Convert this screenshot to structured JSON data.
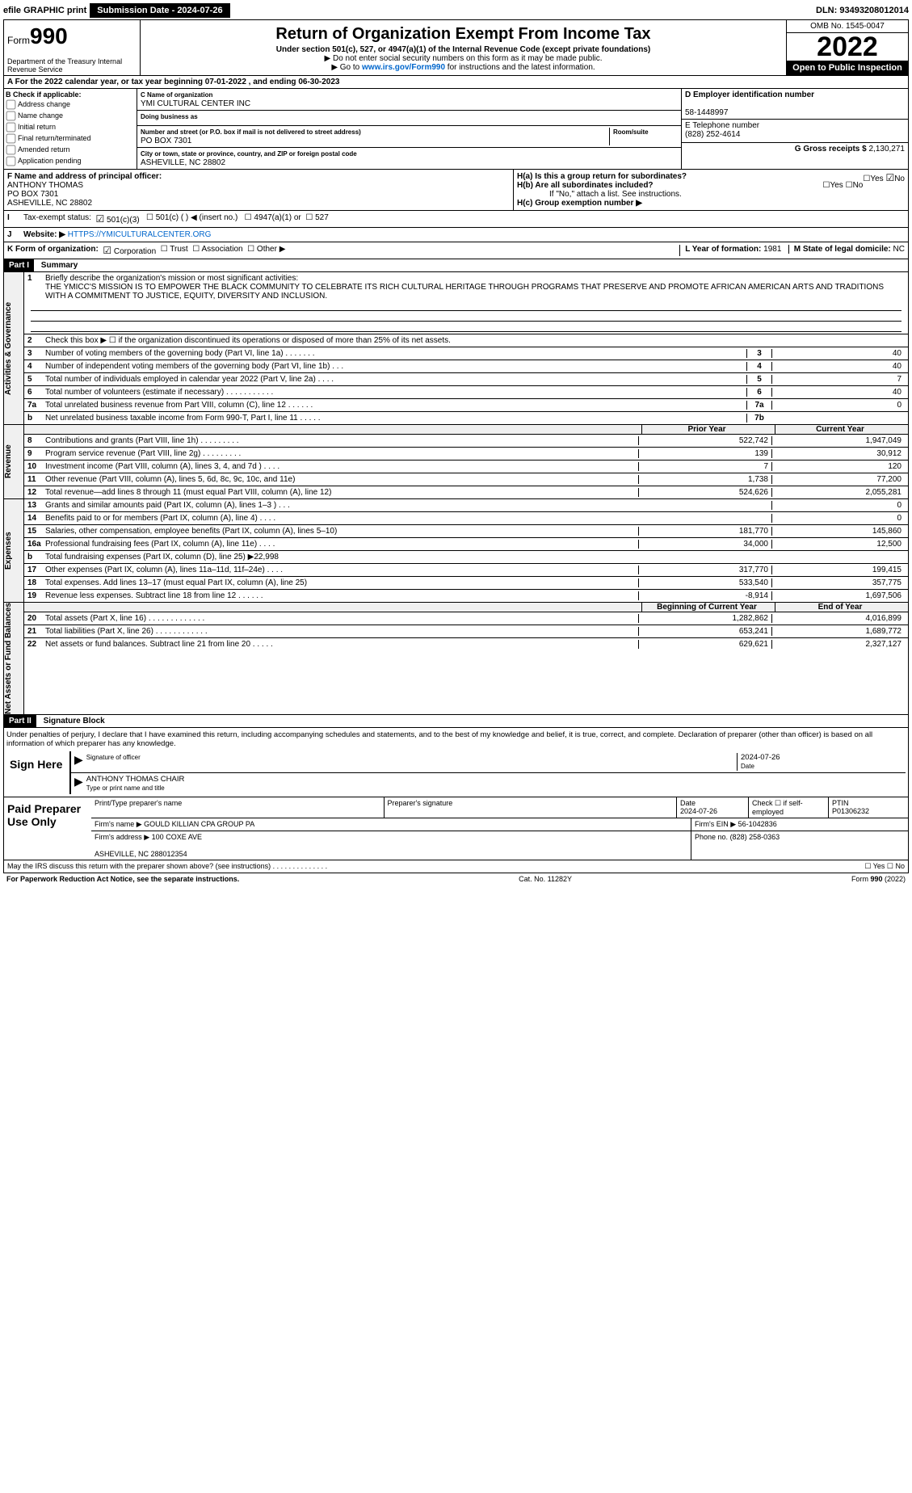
{
  "topbar": {
    "efile": "efile GRAPHIC print",
    "submission": "Submission Date - 2024-07-26",
    "dln": "DLN: 93493208012014"
  },
  "header": {
    "form_word": "Form",
    "form_num": "990",
    "dept": "Department of the Treasury Internal Revenue Service",
    "title": "Return of Organization Exempt From Income Tax",
    "sub": "Under section 501(c), 527, or 4947(a)(1) of the Internal Revenue Code (except private foundations)",
    "note1": "▶ Do not enter social security numbers on this form as it may be made public.",
    "note2_a": "▶ Go to ",
    "note2_link": "www.irs.gov/Form990",
    "note2_b": " for instructions and the latest information.",
    "omb": "OMB No. 1545-0047",
    "year": "2022",
    "open": "Open to Public Inspection"
  },
  "rowA": "A For the 2022 calendar year, or tax year beginning 07-01-2022    , and ending 06-30-2023",
  "colB": {
    "hdr": "B Check if applicable:",
    "items": [
      "Address change",
      "Name change",
      "Initial return",
      "Final return/terminated",
      "Amended return",
      "Application pending"
    ]
  },
  "colC": {
    "c_label": "C Name of organization",
    "c_val": "YMI CULTURAL CENTER INC",
    "dba_label": "Doing business as",
    "dba_val": "",
    "addr_label": "Number and street (or P.O. box if mail is not delivered to street address)",
    "room_label": "Room/suite",
    "addr_val": "PO BOX 7301",
    "city_label": "City or town, state or province, country, and ZIP or foreign postal code",
    "city_val": "ASHEVILLE, NC  28802"
  },
  "colD": {
    "d_label": "D Employer identification number",
    "d_val": "58-1448997",
    "e_label": "E Telephone number",
    "e_val": "(828) 252-4614",
    "g_label": "G Gross receipts $",
    "g_val": "2,130,271"
  },
  "rowF": {
    "f_label": "F  Name and address of principal officer:",
    "f_val": "ANTHONY THOMAS\nPO BOX 7301\nASHEVILLE, NC  28802",
    "ha": "H(a)  Is this a group return for subordinates?",
    "hb": "H(b)  Are all subordinates included?",
    "hb_note": "If \"No,\" attach a list. See instructions.",
    "hc": "H(c)  Group exemption number ▶",
    "yes": "Yes",
    "no": "No"
  },
  "rowI": {
    "label": "Tax-exempt status:",
    "opts": [
      "501(c)(3)",
      "501(c) (  ) ◀ (insert no.)",
      "4947(a)(1) or",
      "527"
    ]
  },
  "rowJ": {
    "label": "Website: ▶",
    "val": "HTTPS://YMICULTURALCENTER.ORG"
  },
  "rowK": {
    "label": "K Form of organization:",
    "opts": [
      "Corporation",
      "Trust",
      "Association",
      "Other ▶"
    ],
    "l_label": "L Year of formation:",
    "l_val": "1981",
    "m_label": "M State of legal domicile:",
    "m_val": "NC"
  },
  "part1": {
    "hdr": "Part I",
    "title": "Summary"
  },
  "mission": {
    "num": "1",
    "label": "Briefly describe the organization's mission or most significant activities:",
    "text": "THE YMICC'S MISSION IS TO EMPOWER THE BLACK COMMUNITY TO CELEBRATE ITS RICH CULTURAL HERITAGE THROUGH PROGRAMS THAT PRESERVE AND PROMOTE AFRICAN AMERICAN ARTS AND TRADITIONS WITH A COMMITMENT TO JUSTICE, EQUITY, DIVERSITY AND INCLUSION."
  },
  "gov_lines": [
    {
      "n": "2",
      "t": "Check this box ▶ ☐ if the organization discontinued its operations or disposed of more than 25% of its net assets."
    },
    {
      "n": "3",
      "t": "Number of voting members of the governing body (Part VI, line 1a)  .   .   .   .   .   .   .",
      "b": "3",
      "v": "40"
    },
    {
      "n": "4",
      "t": "Number of independent voting members of the governing body (Part VI, line 1b)  .   .   .",
      "b": "4",
      "v": "40"
    },
    {
      "n": "5",
      "t": "Total number of individuals employed in calendar year 2022 (Part V, line 2a)  .   .   .   .",
      "b": "5",
      "v": "7"
    },
    {
      "n": "6",
      "t": "Total number of volunteers (estimate if necessary)   .   .   .   .   .   .   .   .   .   .   .",
      "b": "6",
      "v": "40"
    },
    {
      "n": "7a",
      "t": "Total unrelated business revenue from Part VIII, column (C), line 12  .   .   .   .   .   .",
      "b": "7a",
      "v": "0"
    },
    {
      "n": "b",
      "t": "Net unrelated business taxable income from Form 990-T, Part I, line 11  .   .   .   .   .",
      "b": "7b",
      "v": ""
    }
  ],
  "rev_hdr": {
    "prior": "Prior Year",
    "curr": "Current Year"
  },
  "rev_lines": [
    {
      "n": "8",
      "t": "Contributions and grants (Part VIII, line 1h)   .   .   .   .   .   .   .   .   .",
      "p": "522,742",
      "c": "1,947,049"
    },
    {
      "n": "9",
      "t": "Program service revenue (Part VIII, line 2g)   .   .   .   .   .   .   .   .   .",
      "p": "139",
      "c": "30,912"
    },
    {
      "n": "10",
      "t": "Investment income (Part VIII, column (A), lines 3, 4, and 7d )  .   .   .   .",
      "p": "7",
      "c": "120"
    },
    {
      "n": "11",
      "t": "Other revenue (Part VIII, column (A), lines 5, 6d, 8c, 9c, 10c, and 11e)",
      "p": "1,738",
      "c": "77,200"
    },
    {
      "n": "12",
      "t": "Total revenue—add lines 8 through 11 (must equal Part VIII, column (A), line 12)",
      "p": "524,626",
      "c": "2,055,281"
    }
  ],
  "exp_lines": [
    {
      "n": "13",
      "t": "Grants and similar amounts paid (Part IX, column (A), lines 1–3 )  .   .   .",
      "p": "",
      "c": "0"
    },
    {
      "n": "14",
      "t": "Benefits paid to or for members (Part IX, column (A), line 4)  .   .   .   .",
      "p": "",
      "c": "0"
    },
    {
      "n": "15",
      "t": "Salaries, other compensation, employee benefits (Part IX, column (A), lines 5–10)",
      "p": "181,770",
      "c": "145,860"
    },
    {
      "n": "16a",
      "t": "Professional fundraising fees (Part IX, column (A), line 11e)  .   .   .   .",
      "p": "34,000",
      "c": "12,500"
    },
    {
      "n": "b",
      "t": "Total fundraising expenses (Part IX, column (D), line 25) ▶22,998",
      "p": "",
      "c": "",
      "shaded": true
    },
    {
      "n": "17",
      "t": "Other expenses (Part IX, column (A), lines 11a–11d, 11f–24e)  .   .   .   .",
      "p": "317,770",
      "c": "199,415"
    },
    {
      "n": "18",
      "t": "Total expenses. Add lines 13–17 (must equal Part IX, column (A), line 25)",
      "p": "533,540",
      "c": "357,775"
    },
    {
      "n": "19",
      "t": "Revenue less expenses. Subtract line 18 from line 12  .   .   .   .   .   .",
      "p": "-8,914",
      "c": "1,697,506"
    }
  ],
  "net_hdr": {
    "prior": "Beginning of Current Year",
    "curr": "End of Year"
  },
  "net_lines": [
    {
      "n": "20",
      "t": "Total assets (Part X, line 16)  .   .   .   .   .   .   .   .   .   .   .   .   .",
      "p": "1,282,862",
      "c": "4,016,899"
    },
    {
      "n": "21",
      "t": "Total liabilities (Part X, line 26)  .   .   .   .   .   .   .   .   .   .   .   .",
      "p": "653,241",
      "c": "1,689,772"
    },
    {
      "n": "22",
      "t": "Net assets or fund balances. Subtract line 21 from line 20  .   .   .   .   .",
      "p": "629,621",
      "c": "2,327,127"
    }
  ],
  "vtabs": {
    "gov": "Activities & Governance",
    "rev": "Revenue",
    "exp": "Expenses",
    "net": "Net Assets or Fund Balances"
  },
  "part2": {
    "hdr": "Part II",
    "title": "Signature Block",
    "decl": "Under penalties of perjury, I declare that I have examined this return, including accompanying schedules and statements, and to the best of my knowledge and belief, it is true, correct, and complete. Declaration of preparer (other than officer) is based on all information of which preparer has any knowledge."
  },
  "sign": {
    "here": "Sign Here",
    "sig_label": "Signature of officer",
    "date": "2024-07-26",
    "date_label": "Date",
    "name": "ANTHONY THOMAS  CHAIR",
    "name_label": "Type or print name and title"
  },
  "prep": {
    "label": "Paid Preparer Use Only",
    "h1": "Print/Type preparer's name",
    "h2": "Preparer's signature",
    "h3": "Date",
    "h3v": "2024-07-26",
    "h4": "Check ☐ if self-employed",
    "h5": "PTIN",
    "h5v": "P01306232",
    "firm_label": "Firm's name   ▶",
    "firm": "GOULD KILLIAN CPA GROUP PA",
    "ein_label": "Firm's EIN ▶",
    "ein": "56-1042836",
    "addr_label": "Firm's address ▶",
    "addr": "100 COXE AVE\n\nASHEVILLE, NC  288012354",
    "phone_label": "Phone no.",
    "phone": "(828) 258-0363"
  },
  "footer": {
    "q": "May the IRS discuss this return with the preparer shown above? (see instructions)  .   .   .   .   .   .   .   .   .   .   .   .   .   .",
    "yn": "☐ Yes  ☐ No",
    "pra": "For Paperwork Reduction Act Notice, see the separate instructions.",
    "cat": "Cat. No. 11282Y",
    "form": "Form 990 (2022)"
  }
}
